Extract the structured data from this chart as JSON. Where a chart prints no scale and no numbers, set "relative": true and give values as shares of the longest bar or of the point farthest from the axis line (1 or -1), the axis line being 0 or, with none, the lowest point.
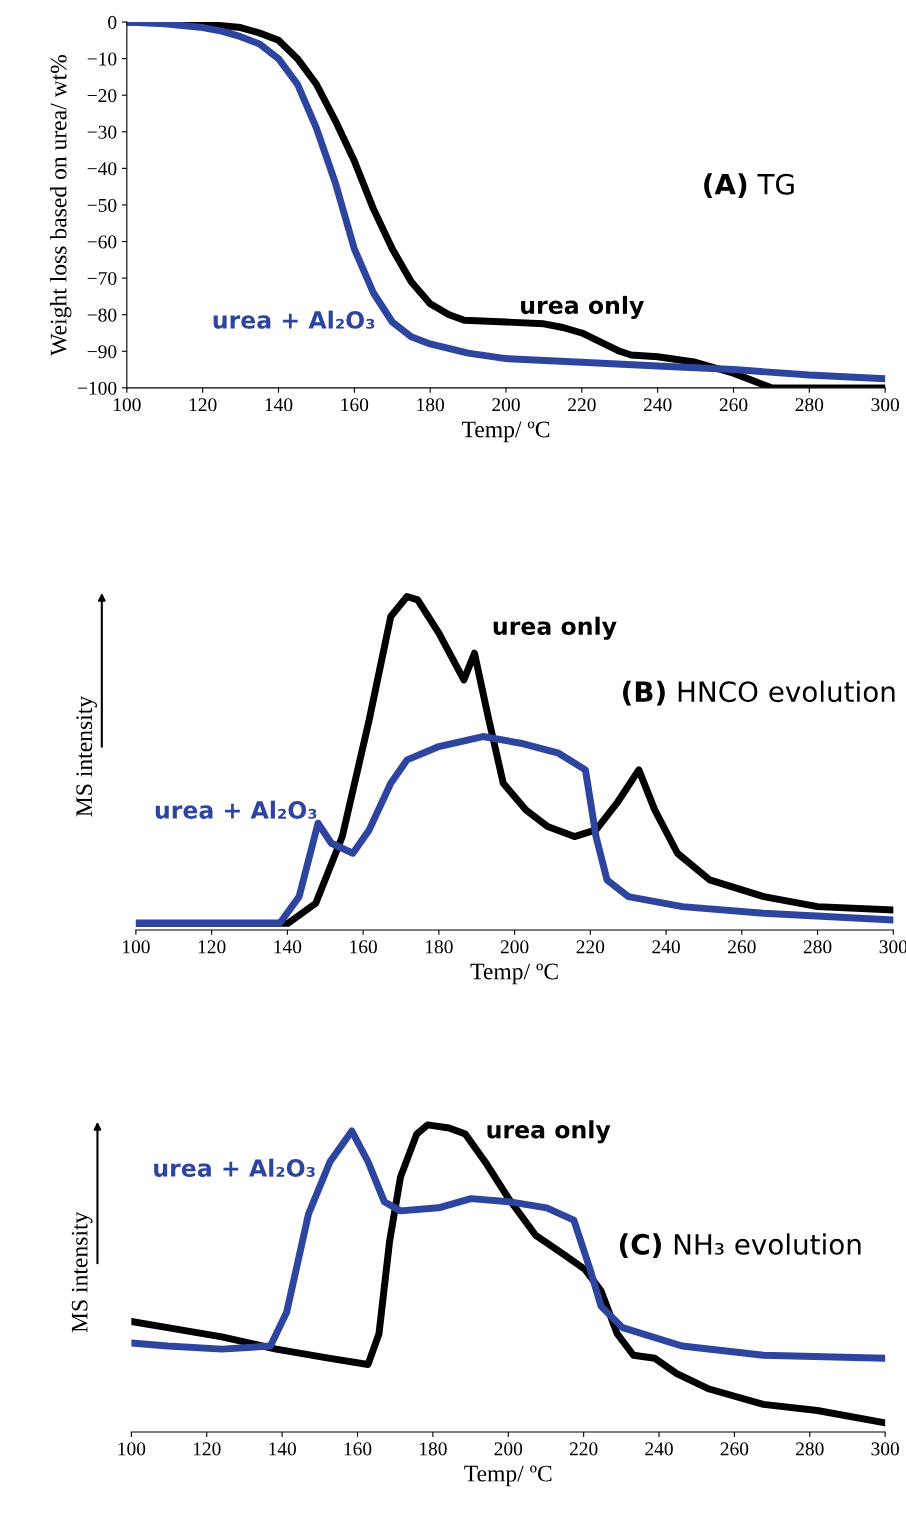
{
  "chart_data": [
    {
      "type": "line",
      "title": "(A) TG",
      "xlabel": "Temp/ ºC",
      "ylabel": "Weight loss based on urea/ wt%",
      "xlim": [
        100,
        300
      ],
      "xticks": [
        100,
        120,
        140,
        160,
        180,
        200,
        220,
        240,
        260,
        280,
        300
      ],
      "ylim": [
        -100,
        0
      ],
      "yticks": [
        {
          "value": -100,
          "label": "−100"
        },
        {
          "value": -90,
          "label": "−90"
        },
        {
          "value": -80,
          "label": "−80"
        },
        {
          "value": -70,
          "label": "−70"
        },
        {
          "value": -60,
          "label": "−60"
        },
        {
          "value": -50,
          "label": "−50"
        },
        {
          "value": -40,
          "label": "−40"
        },
        {
          "value": -30,
          "label": "−30"
        },
        {
          "value": -20,
          "label": "−20"
        },
        {
          "value": -10,
          "label": "−10"
        },
        0
      ],
      "series": [
        {
          "name": "urea only",
          "color": "#000000",
          "x": [
            100,
            120,
            130,
            135,
            140,
            145,
            150,
            155,
            160,
            165,
            170,
            175,
            180,
            185,
            189,
            200,
            210,
            215,
            220,
            225,
            230,
            233,
            240,
            250,
            255,
            260,
            265,
            270,
            280,
            300
          ],
          "values": [
            0,
            -0.5,
            -1.5,
            -3,
            -5,
            -10,
            -17,
            -27,
            -38,
            -51,
            -62,
            -71,
            -77,
            -80,
            -81.5,
            -82,
            -82.5,
            -83.5,
            -85,
            -87.5,
            -90,
            -91,
            -91.5,
            -93,
            -94.5,
            -96,
            -98,
            -100,
            -100,
            -100
          ]
        },
        {
          "name": "urea + Al₂O₃",
          "color": "#2e45a0",
          "x": [
            100,
            110,
            120,
            125,
            130,
            135,
            140,
            145,
            150,
            155,
            160,
            165,
            170,
            175,
            180,
            190,
            200,
            220,
            240,
            260,
            280,
            300
          ],
          "values": [
            0,
            -0.5,
            -1.5,
            -2.5,
            -4,
            -6,
            -10,
            -17,
            -29,
            -44,
            -62,
            -74,
            -82,
            -86,
            -88,
            -90.5,
            -92,
            -93,
            -94,
            -95,
            -96.5,
            -97.5
          ]
        }
      ]
    },
    {
      "type": "line",
      "relative": true,
      "title": "(B) HNCO evolution",
      "xlabel": "Temp/ ºC",
      "ylabel": "MS intensity",
      "xlim": [
        100,
        300
      ],
      "xticks": [
        100,
        120,
        140,
        160,
        180,
        200,
        220,
        240,
        260,
        280,
        300
      ],
      "series": [
        {
          "name": "urea only",
          "color": "#000000",
          "x": [
            100,
            140.2,
            147.5,
            154.5,
            161.6,
            167.3,
            171.6,
            174.4,
            180,
            186.6,
            189.4,
            193,
            197,
            203,
            208.7,
            215.8,
            221.5,
            227,
            232.8,
            237,
            243,
            251.5,
            265.8,
            280,
            300
          ],
          "values": [
            0.02,
            0.02,
            0.08,
            0.28,
            0.63,
            0.94,
            1.0,
            0.99,
            0.89,
            0.75,
            0.83,
            0.64,
            0.44,
            0.36,
            0.31,
            0.28,
            0.3,
            0.38,
            0.48,
            0.36,
            0.23,
            0.15,
            0.1,
            0.07,
            0.06
          ]
        },
        {
          "name": "urea + Al₂O₃",
          "color": "#2e45a0",
          "x": [
            100,
            138,
            143.1,
            148.1,
            151.6,
            157.3,
            161.6,
            167.3,
            171.6,
            180,
            191.6,
            201.6,
            211.6,
            218.7,
            221.5,
            224.4,
            230,
            244.3,
            265.7,
            300
          ],
          "values": [
            0.02,
            0.02,
            0.1,
            0.32,
            0.26,
            0.23,
            0.3,
            0.44,
            0.51,
            0.55,
            0.58,
            0.56,
            0.53,
            0.48,
            0.28,
            0.15,
            0.1,
            0.07,
            0.05,
            0.03
          ]
        }
      ]
    },
    {
      "type": "line",
      "relative": true,
      "title": "(C) NH₃ evolution",
      "xlabel": "Temp/ ºC",
      "ylabel": "MS intensity",
      "xlim": [
        100,
        300
      ],
      "xticks": [
        100,
        120,
        140,
        160,
        180,
        200,
        220,
        240,
        260,
        280,
        300
      ],
      "series": [
        {
          "name": "urea only",
          "color": "#000000",
          "x": [
            100,
            109.6,
            124,
            138.4,
            152.7,
            162.8,
            165.7,
            168.5,
            171.4,
            175.7,
            178.6,
            184.3,
            188.6,
            194.4,
            200.1,
            207.3,
            214.5,
            220.3,
            224.6,
            228.9,
            233.2,
            238.9,
            244.7,
            253.3,
            267.7,
            282,
            300
          ],
          "values": [
            0.36,
            0.34,
            0.31,
            0.27,
            0.24,
            0.22,
            0.32,
            0.62,
            0.83,
            0.97,
            1.0,
            0.99,
            0.97,
            0.87,
            0.76,
            0.64,
            0.58,
            0.53,
            0.46,
            0.32,
            0.25,
            0.24,
            0.19,
            0.14,
            0.09,
            0.07,
            0.03
          ]
        },
        {
          "name": "urea + Al₂O₃",
          "color": "#2e45a0",
          "x": [
            100,
            109.6,
            124,
            136.9,
            141.2,
            147,
            152.7,
            158.5,
            162.8,
            167.1,
            171.4,
            181.5,
            190.1,
            200.1,
            210.2,
            217.4,
            221.7,
            224.6,
            230.3,
            246.1,
            267.7,
            300
          ],
          "values": [
            0.29,
            0.28,
            0.27,
            0.28,
            0.39,
            0.71,
            0.88,
            0.98,
            0.88,
            0.75,
            0.72,
            0.73,
            0.76,
            0.75,
            0.73,
            0.69,
            0.53,
            0.41,
            0.34,
            0.28,
            0.25,
            0.24
          ]
        }
      ]
    }
  ]
}
